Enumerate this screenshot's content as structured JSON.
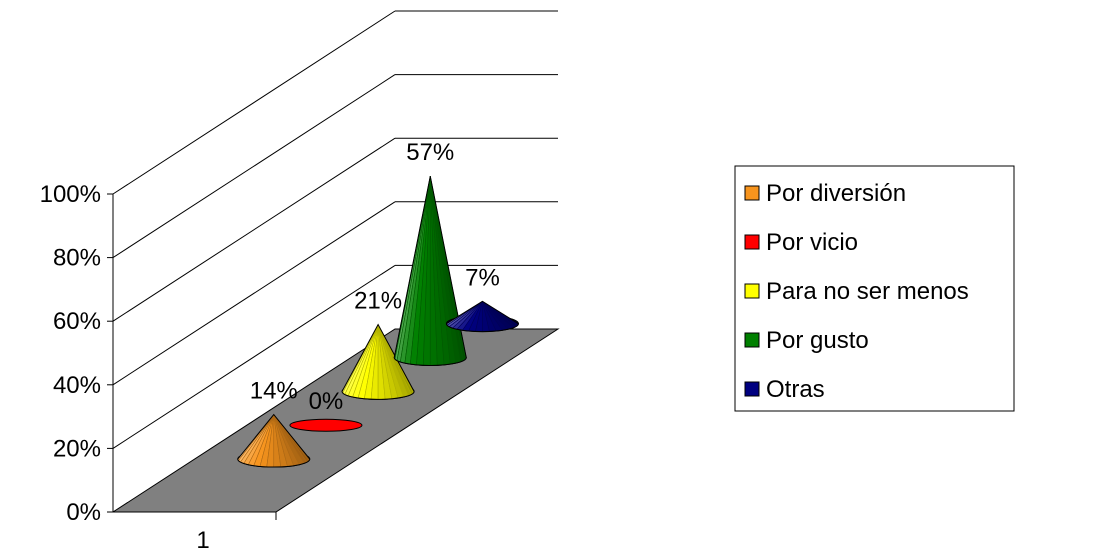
{
  "chart_data": {
    "type": "bar",
    "shape": "cone-3d",
    "categories": [
      "1"
    ],
    "series": [
      {
        "name": "Por diversión",
        "values": [
          14
        ],
        "label": "14%",
        "color": "#f7941d"
      },
      {
        "name": "Por vicio",
        "values": [
          0
        ],
        "label": "0%",
        "color": "#ff0000"
      },
      {
        "name": "Para no ser menos",
        "values": [
          21
        ],
        "label": "21%",
        "color": "#ffff00"
      },
      {
        "name": "Por gusto",
        "values": [
          57
        ],
        "label": "57%",
        "color": "#008000"
      },
      {
        "name": "Otras",
        "values": [
          7
        ],
        "label": "7%",
        "color": "#000080"
      }
    ],
    "y_ticks": [
      "0%",
      "20%",
      "40%",
      "60%",
      "80%",
      "100%"
    ],
    "ylim": [
      0,
      100
    ],
    "grid": true,
    "floor_color": "#808080",
    "legend_position": "right"
  }
}
